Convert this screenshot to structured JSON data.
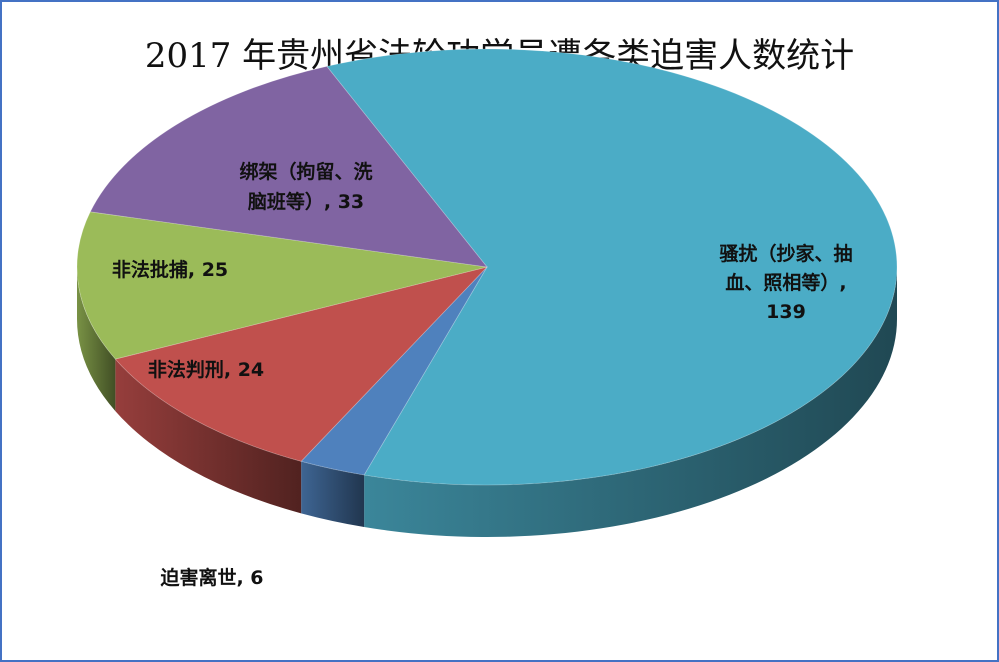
{
  "chart_data": {
    "type": "pie",
    "title": "2017 年贵州省法轮功学员遭各类迫害人数统计",
    "slices": [
      {
        "label": "骚扰（抄家、抽血、照相等）",
        "value": 139,
        "color": "#4bacc6"
      },
      {
        "label": "迫害离世",
        "value": 6,
        "color": "#4f81bd"
      },
      {
        "label": "非法判刑",
        "value": 24,
        "color": "#c0504d"
      },
      {
        "label": "非法批捕",
        "value": 25,
        "color": "#9bbb59"
      },
      {
        "label": "绑架（拘留、洗脑班等）",
        "value": 33,
        "color": "#8064a2"
      }
    ],
    "data_labels": [
      {
        "lines": [
          "骚扰（抄家、抽",
          "血、照相等）,",
          "139"
        ]
      },
      {
        "lines": [
          "迫害离世, 6"
        ]
      },
      {
        "lines": [
          "非法判刑, 24"
        ]
      },
      {
        "lines": [
          "非法批捕, 25"
        ]
      },
      {
        "lines": [
          "绑架（拘留、洗",
          "脑班等）, 33"
        ]
      }
    ],
    "legend": "none",
    "style": "3d-exploded-pie"
  }
}
